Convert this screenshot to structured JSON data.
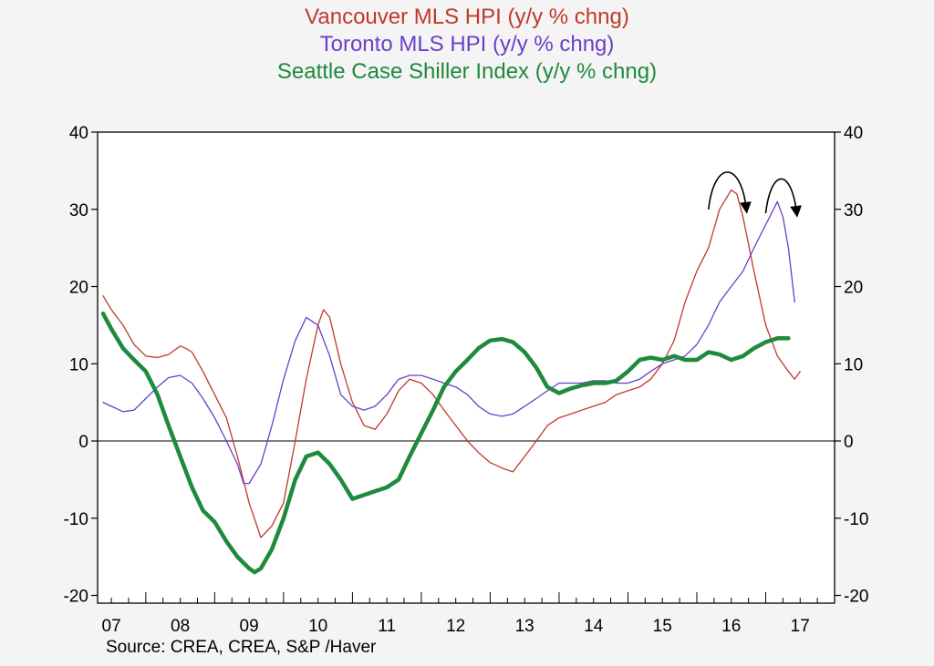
{
  "chart_data": {
    "type": "line",
    "titles": [
      {
        "text": "Vancouver MLS HPI (y/y % chng)",
        "color": "#c0392b"
      },
      {
        "text": "Toronto MLS HPI (y/y % chng)",
        "color": "#6a3fc8"
      },
      {
        "text": "Seattle Case Shiller Index (y/y % chng)",
        "color": "#1e8a3c"
      }
    ],
    "source": "Source:  CREA, CREA, S&P /Haver",
    "xlim": [
      2006.3,
      2017.0
    ],
    "ylim": [
      -21,
      40
    ],
    "y_ticks": [
      -20,
      -10,
      0,
      10,
      20,
      30,
      40
    ],
    "x_ticks": [
      {
        "value": 2007.0,
        "label": "07"
      },
      {
        "value": 2008.0,
        "label": "08"
      },
      {
        "value": 2009.0,
        "label": "09"
      },
      {
        "value": 2010.0,
        "label": "10"
      },
      {
        "value": 2011.0,
        "label": "11"
      },
      {
        "value": 2012.0,
        "label": "12"
      },
      {
        "value": 2013.0,
        "label": "13"
      },
      {
        "value": 2014.0,
        "label": "14"
      },
      {
        "value": 2015.0,
        "label": "15"
      },
      {
        "value": 2016.0,
        "label": "16"
      },
      {
        "value": 2017.0,
        "label": "17"
      }
    ],
    "series": [
      {
        "name": "Vancouver MLS HPI (y/y % chng)",
        "color": "#c0392b",
        "width": 1.3,
        "points": [
          [
            2006.38,
            18.8
          ],
          [
            2006.5,
            17
          ],
          [
            2006.67,
            15
          ],
          [
            2006.83,
            12.5
          ],
          [
            2007.0,
            11
          ],
          [
            2007.17,
            10.8
          ],
          [
            2007.33,
            11.2
          ],
          [
            2007.5,
            12.3
          ],
          [
            2007.58,
            12
          ],
          [
            2007.67,
            11.5
          ],
          [
            2007.83,
            9
          ],
          [
            2008.0,
            6
          ],
          [
            2008.17,
            3
          ],
          [
            2008.33,
            -2
          ],
          [
            2008.5,
            -8
          ],
          [
            2008.67,
            -12.5
          ],
          [
            2008.83,
            -11
          ],
          [
            2009.0,
            -8
          ],
          [
            2009.17,
            0
          ],
          [
            2009.33,
            8
          ],
          [
            2009.5,
            15
          ],
          [
            2009.58,
            17
          ],
          [
            2009.67,
            16
          ],
          [
            2009.83,
            10
          ],
          [
            2010.0,
            5
          ],
          [
            2010.17,
            2
          ],
          [
            2010.33,
            1.5
          ],
          [
            2010.5,
            3.5
          ],
          [
            2010.67,
            6.5
          ],
          [
            2010.83,
            8
          ],
          [
            2011.0,
            7.5
          ],
          [
            2011.17,
            6
          ],
          [
            2011.33,
            4
          ],
          [
            2011.5,
            2
          ],
          [
            2011.67,
            0
          ],
          [
            2011.83,
            -1.5
          ],
          [
            2012.0,
            -2.8
          ],
          [
            2012.17,
            -3.5
          ],
          [
            2012.33,
            -4
          ],
          [
            2012.5,
            -2
          ],
          [
            2012.67,
            0
          ],
          [
            2012.83,
            2
          ],
          [
            2013.0,
            3
          ],
          [
            2013.17,
            3.5
          ],
          [
            2013.33,
            4
          ],
          [
            2013.5,
            4.5
          ],
          [
            2013.67,
            5
          ],
          [
            2013.83,
            6
          ],
          [
            2014.0,
            6.5
          ],
          [
            2014.17,
            7
          ],
          [
            2014.33,
            8
          ],
          [
            2014.5,
            10
          ],
          [
            2014.67,
            13
          ],
          [
            2014.83,
            18
          ],
          [
            2015.0,
            22
          ],
          [
            2015.17,
            25
          ],
          [
            2015.33,
            30
          ],
          [
            2015.5,
            32.5
          ],
          [
            2015.58,
            32
          ],
          [
            2015.67,
            29
          ],
          [
            2015.83,
            22
          ],
          [
            2016.0,
            15
          ],
          [
            2016.17,
            11
          ],
          [
            2016.33,
            9
          ],
          [
            2016.42,
            8
          ],
          [
            2016.5,
            9
          ]
        ]
      },
      {
        "name": "Toronto MLS HPI (y/y % chng)",
        "color": "#6a3fc8",
        "width": 1.3,
        "points": [
          [
            2006.38,
            5
          ],
          [
            2006.5,
            4.5
          ],
          [
            2006.67,
            3.8
          ],
          [
            2006.83,
            4
          ],
          [
            2007.0,
            5.5
          ],
          [
            2007.17,
            7
          ],
          [
            2007.33,
            8.2
          ],
          [
            2007.5,
            8.5
          ],
          [
            2007.67,
            7.5
          ],
          [
            2007.83,
            5.5
          ],
          [
            2008.0,
            3
          ],
          [
            2008.17,
            0
          ],
          [
            2008.33,
            -3
          ],
          [
            2008.42,
            -5.5
          ],
          [
            2008.5,
            -5.5
          ],
          [
            2008.67,
            -3
          ],
          [
            2008.83,
            2
          ],
          [
            2009.0,
            8
          ],
          [
            2009.17,
            13
          ],
          [
            2009.33,
            16
          ],
          [
            2009.5,
            15
          ],
          [
            2009.67,
            11
          ],
          [
            2009.83,
            6
          ],
          [
            2010.0,
            4.5
          ],
          [
            2010.17,
            4
          ],
          [
            2010.33,
            4.5
          ],
          [
            2010.5,
            6
          ],
          [
            2010.67,
            8
          ],
          [
            2010.83,
            8.5
          ],
          [
            2011.0,
            8.5
          ],
          [
            2011.17,
            8
          ],
          [
            2011.33,
            7.5
          ],
          [
            2011.5,
            7
          ],
          [
            2011.67,
            6
          ],
          [
            2011.83,
            4.5
          ],
          [
            2012.0,
            3.5
          ],
          [
            2012.17,
            3.2
          ],
          [
            2012.33,
            3.5
          ],
          [
            2012.5,
            4.5
          ],
          [
            2012.67,
            5.5
          ],
          [
            2012.83,
            6.5
          ],
          [
            2013.0,
            7.5
          ],
          [
            2013.17,
            7.5
          ],
          [
            2013.33,
            7.5
          ],
          [
            2013.5,
            7.8
          ],
          [
            2013.67,
            7.8
          ],
          [
            2013.83,
            7.5
          ],
          [
            2014.0,
            7.5
          ],
          [
            2014.17,
            8
          ],
          [
            2014.33,
            9
          ],
          [
            2014.5,
            10
          ],
          [
            2014.67,
            10.5
          ],
          [
            2014.83,
            11
          ],
          [
            2015.0,
            12.5
          ],
          [
            2015.17,
            15
          ],
          [
            2015.33,
            18
          ],
          [
            2015.5,
            20
          ],
          [
            2015.67,
            22
          ],
          [
            2015.83,
            25
          ],
          [
            2016.0,
            28
          ],
          [
            2016.17,
            31
          ],
          [
            2016.25,
            29
          ],
          [
            2016.33,
            25
          ],
          [
            2016.42,
            18
          ]
        ]
      },
      {
        "name": "Seattle Case Shiller Index (y/y % chng)",
        "color": "#1e8a3c",
        "width": 4.5,
        "points": [
          [
            2006.38,
            16.5
          ],
          [
            2006.5,
            14.5
          ],
          [
            2006.67,
            12
          ],
          [
            2006.83,
            10.5
          ],
          [
            2007.0,
            9
          ],
          [
            2007.17,
            6
          ],
          [
            2007.33,
            2
          ],
          [
            2007.5,
            -2
          ],
          [
            2007.67,
            -6
          ],
          [
            2007.83,
            -9
          ],
          [
            2008.0,
            -10.5
          ],
          [
            2008.17,
            -13
          ],
          [
            2008.33,
            -15
          ],
          [
            2008.5,
            -16.5
          ],
          [
            2008.58,
            -17
          ],
          [
            2008.67,
            -16.5
          ],
          [
            2008.83,
            -14
          ],
          [
            2009.0,
            -10
          ],
          [
            2009.17,
            -5
          ],
          [
            2009.33,
            -2
          ],
          [
            2009.5,
            -1.5
          ],
          [
            2009.67,
            -3
          ],
          [
            2009.83,
            -5
          ],
          [
            2010.0,
            -7.5
          ],
          [
            2010.17,
            -7
          ],
          [
            2010.33,
            -6.5
          ],
          [
            2010.5,
            -6
          ],
          [
            2010.67,
            -5
          ],
          [
            2010.83,
            -2
          ],
          [
            2011.0,
            1
          ],
          [
            2011.17,
            4
          ],
          [
            2011.33,
            7
          ],
          [
            2011.5,
            9
          ],
          [
            2011.67,
            10.5
          ],
          [
            2011.83,
            12
          ],
          [
            2012.0,
            13
          ],
          [
            2012.17,
            13.2
          ],
          [
            2012.33,
            12.8
          ],
          [
            2012.5,
            11.5
          ],
          [
            2012.67,
            9.5
          ],
          [
            2012.83,
            7
          ],
          [
            2013.0,
            6.2
          ],
          [
            2013.17,
            6.8
          ],
          [
            2013.33,
            7.2
          ],
          [
            2013.5,
            7.5
          ],
          [
            2013.67,
            7.5
          ],
          [
            2013.83,
            7.8
          ],
          [
            2014.0,
            9
          ],
          [
            2014.17,
            10.5
          ],
          [
            2014.33,
            10.8
          ],
          [
            2014.5,
            10.5
          ],
          [
            2014.67,
            11
          ],
          [
            2014.83,
            10.5
          ],
          [
            2015.0,
            10.5
          ],
          [
            2015.17,
            11.5
          ],
          [
            2015.33,
            11.2
          ],
          [
            2015.5,
            10.5
          ],
          [
            2015.67,
            11
          ],
          [
            2015.83,
            12
          ],
          [
            2016.0,
            12.8
          ],
          [
            2016.17,
            13.3
          ],
          [
            2016.33,
            13.3
          ]
        ]
      }
    ],
    "annotations": [
      {
        "type": "curved-arrow",
        "from": [
          2015.17,
          30
        ],
        "peak": [
          2015.45,
          35
        ],
        "to": [
          2015.72,
          30
        ]
      },
      {
        "type": "curved-arrow",
        "from": [
          2016.0,
          29.5
        ],
        "peak": [
          2016.23,
          34
        ],
        "to": [
          2016.45,
          29.5
        ]
      }
    ],
    "grid": false,
    "zero_line": true
  }
}
